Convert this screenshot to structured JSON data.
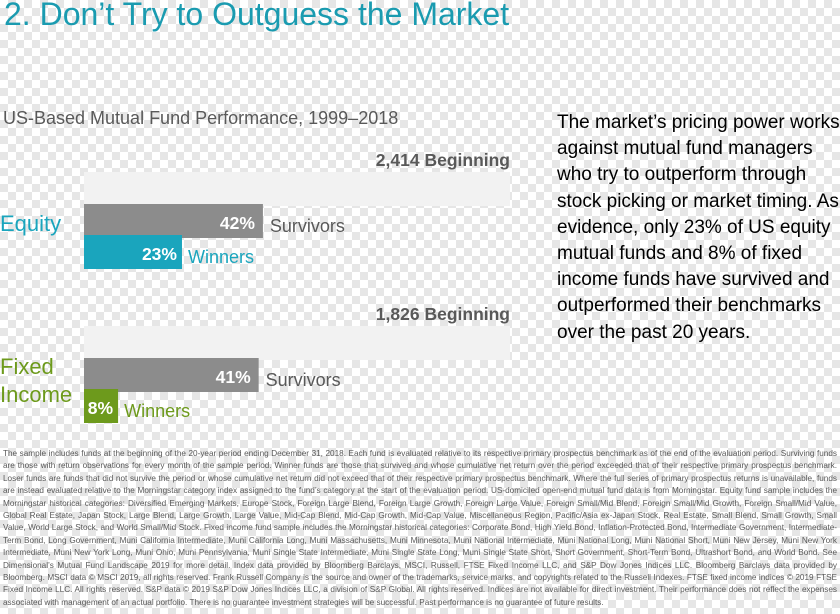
{
  "slide": {
    "title": "2. Don’t Try to Outguess the Market"
  },
  "chart_data": {
    "type": "bar",
    "title": "US-Based Mutual Fund Performance, 1999–2018",
    "categories": [
      "Equity",
      "Fixed Income"
    ],
    "groups": [
      {
        "category": "Equity",
        "beginning_count": 2414,
        "beginning_label": "2,414 Beginning",
        "survivors_pct": 42,
        "survivors_label": "42%",
        "winners_pct": 23,
        "winners_label": "23%",
        "winners_color": "#1aa5bd"
      },
      {
        "category": "Fixed Income",
        "category_lines": [
          "Fixed",
          "Income"
        ],
        "beginning_count": 1826,
        "beginning_label": "1,826 Beginning",
        "survivors_pct": 41,
        "survivors_label": "41%",
        "winners_pct": 8,
        "winners_label": "8%",
        "winners_color": "#6d9a1c"
      }
    ],
    "legend": {
      "survivors": "Survivors",
      "winners": "Winners"
    },
    "colors": {
      "beginning": "#f2f2f2",
      "survivors": "#8c8c8c",
      "equity": "#1aa5bd",
      "fixed_income": "#6d9a1c",
      "category_label": "#1aa5bd",
      "fixed_label": "#6d9a1c",
      "text_gray": "#595959"
    }
  },
  "side_text": "The market’s pricing power works against mutual fund managers who try to outperform through stock picking or market timing. As evidence, only 23% of US equity mutual funds and 8% of fixed income funds have survived and outperformed their benchmarks over the past 20 years.",
  "footnote": "The sample includes funds at the beginning of the 20-year period ending December 31, 2018. Each fund is evaluated relative to its respective primary prospectus benchmark as of the end of the evaluation period. Surviving funds are those with return observations for every month of the sample period. Winner funds are those that survived and whose cumulative net return over the period exceeded that of their respective primary prospectus benchmark. Loser funds are funds that did not survive the period or whose cumulative net return did not exceed that of their respective primary prospectus benchmark. Where the full series of primary prospectus returns is unavailable, funds are instead evaluated relative to the Morningstar category index assigned to the fund’s category at the start of the evaluation period. US-domiciled open-end mutual fund data is from Morningstar. Equity fund sample includes the Morningstar historical categories: Diversified Emerging Markets, Europe Stock, Foreign Large Blend, Foreign Large Growth, Foreign Large Value, Foreign Small/Mid Blend, Foreign Small/Mid Growth, Foreign Small/Mid Value, Global Real Estate, Japan Stock, Large Blend, Large Growth, Large Value, Mid-Cap Blend, Mid-Cap Growth, Mid-Cap Value, Miscellaneous Region, Pacific/Asia ex-Japan Stock, Real Estate, Small Blend, Small Growth, Small Value, World Large Stock, and World Small/Mid Stock. Fixed income fund sample includes the Morningstar historical categories: Corporate Bond, High Yield Bond, Inflation-Protected Bond, Intermediate Government, Intermediate-Term Bond, Long Government, Muni California Intermediate, Muni California Long, Muni Massachusetts, Muni Minnesota, Muni National Intermediate, Muni National Long, Muni National Short, Muni New Jersey, Muni New York Intermediate, Muni New York Long, Muni Ohio, Muni Pennsylvania, Muni Single State Intermediate, Muni Single State Long, Muni Single State Short, Short Government, Short-Term Bond, Ultrashort Bond, and World Bond. See Dimensional’s Mutual Fund Landscape 2019 for more detail. Index data provided by Bloomberg Barclays, MSCI, Russell, FTSE Fixed Income LLC, and S&P Dow Jones Indices LLC. Bloomberg Barclays data provided by Bloomberg. MSCI data © MSCI 2019, all rights reserved. Frank Russell Company is the source and owner of the trademarks, service marks, and copyrights related to the Russell Indexes. FTSE fixed income indices © 2019 FTSE Fixed Income LLC. All rights reserved. S&P data © 2019 S&P Dow Jones Indices LLC, a division of S&P Global. All rights reserved. Indices are not available for direct investment. Their performance does not reflect the expenses associated with management of an actual portfolio. There is no guarantee investment strategies will be successful. Past performance is no guarantee of future results."
}
